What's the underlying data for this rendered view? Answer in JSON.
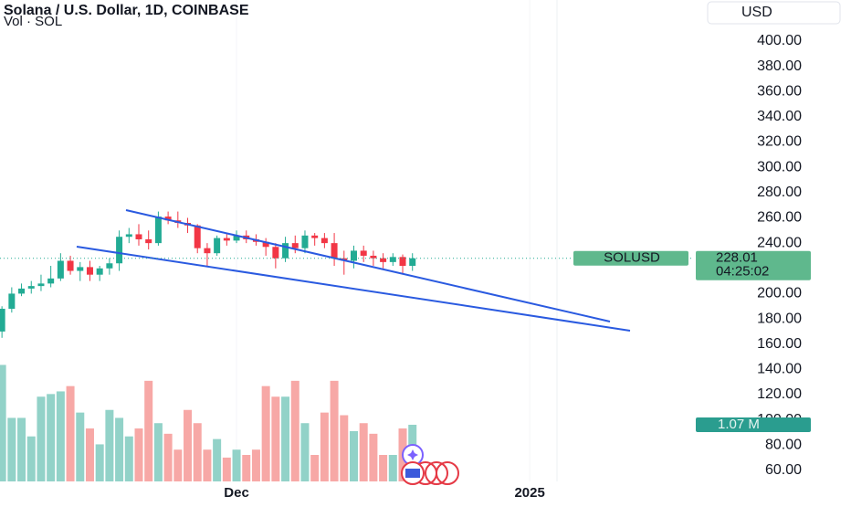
{
  "chart_data": {
    "type": "candlestick",
    "title": "Solana / U.S. Dollar, 1D, COINBASE",
    "subtitle": "Vol · SOL",
    "currency": "USD",
    "symbol": "SOLUSD",
    "last_price": 228.01,
    "countdown": "04:25:02",
    "last_volume_label": "1.07 M",
    "x": [
      0,
      1,
      2,
      3,
      4,
      5,
      6,
      7,
      8,
      9,
      10,
      11,
      12,
      13,
      14,
      15,
      16,
      17,
      18,
      19,
      20,
      21,
      22,
      23,
      24,
      25,
      26,
      27,
      28,
      29,
      30,
      31,
      32,
      33,
      34,
      35,
      36,
      37,
      38,
      39,
      40,
      41,
      42
    ],
    "xlim": [
      -0.2,
      70.8
    ],
    "xticks": [
      {
        "value": 24,
        "label": "Dec"
      },
      {
        "value": 54,
        "label": "2025"
      }
    ],
    "ylim": [
      51.3,
      432.5
    ],
    "yticks": [
      {
        "value": 60,
        "label": "60.00"
      },
      {
        "value": 80,
        "label": "80.00"
      },
      {
        "value": 100,
        "label": "100.00"
      },
      {
        "value": 120,
        "label": "120.00"
      },
      {
        "value": 140,
        "label": "140.00"
      },
      {
        "value": 160,
        "label": "160.00"
      },
      {
        "value": 180,
        "label": "180.00"
      },
      {
        "value": 200,
        "label": "200.00"
      },
      {
        "value": 220,
        "label": "220.00"
      },
      {
        "value": 240,
        "label": "240.00"
      },
      {
        "value": 260,
        "label": "260.00"
      },
      {
        "value": 280,
        "label": "280.00"
      },
      {
        "value": 300,
        "label": "300.00"
      },
      {
        "value": 320,
        "label": "320.00"
      },
      {
        "value": 340,
        "label": "340.00"
      },
      {
        "value": 360,
        "label": "360.00"
      },
      {
        "value": 380,
        "label": "380.00"
      },
      {
        "value": 400,
        "label": "400.00"
      }
    ],
    "y2lim": [
      0,
      9.09
    ],
    "up_color": "#22ab94",
    "down_color": "#f23645",
    "volume_up_color": "#92d2c8",
    "volume_down_color": "#f7a8a6",
    "open": [
      170,
      188,
      200,
      204,
      206,
      208,
      212,
      226,
      218,
      221,
      215,
      220,
      224,
      245,
      247,
      243,
      240,
      261,
      258,
      256,
      254,
      236,
      232,
      244,
      242,
      246,
      243,
      241,
      237,
      228,
      240,
      236,
      246,
      244,
      240,
      228,
      226,
      234,
      230,
      228,
      225,
      229,
      222
    ],
    "high": [
      190,
      205,
      208,
      210,
      215,
      222,
      232,
      230,
      225,
      226,
      222,
      228,
      250,
      252,
      255,
      250,
      265,
      265,
      265,
      260,
      255,
      240,
      246,
      248,
      250,
      250,
      247,
      244,
      240,
      245,
      246,
      250,
      248,
      248,
      248,
      234,
      238,
      238,
      234,
      232,
      232,
      231,
      232
    ],
    "low": [
      165,
      185,
      198,
      200,
      202,
      205,
      210,
      215,
      210,
      210,
      210,
      215,
      218,
      240,
      238,
      235,
      238,
      255,
      252,
      248,
      232,
      222,
      230,
      238,
      240,
      240,
      238,
      230,
      220,
      225,
      232,
      232,
      238,
      236,
      222,
      215,
      220,
      225,
      222,
      220,
      222,
      216,
      218
    ],
    "close": [
      188,
      200,
      204,
      206,
      208,
      212,
      226,
      218,
      221,
      215,
      220,
      224,
      245,
      247,
      243,
      240,
      261,
      258,
      256,
      254,
      236,
      232,
      244,
      242,
      246,
      243,
      241,
      237,
      228,
      240,
      236,
      246,
      244,
      240,
      228,
      226,
      234,
      230,
      228,
      225,
      229,
      222,
      228.01
    ],
    "volume": {
      "axis": "y2",
      "values": [
        2.2,
        1.2,
        1.2,
        0.85,
        1.6,
        1.65,
        1.7,
        1.8,
        1.3,
        1.0,
        0.7,
        1.35,
        1.2,
        0.85,
        1.0,
        1.9,
        1.1,
        0.9,
        0.6,
        1.35,
        1.1,
        0.6,
        0.8,
        0.45,
        0.6,
        0.5,
        0.6,
        1.8,
        1.6,
        1.6,
        1.9,
        1.1,
        0.5,
        1.3,
        1.9,
        1.25,
        0.95,
        1.1,
        0.9,
        0.5,
        0.5,
        1.0,
        1.07
      ]
    }
  }
}
